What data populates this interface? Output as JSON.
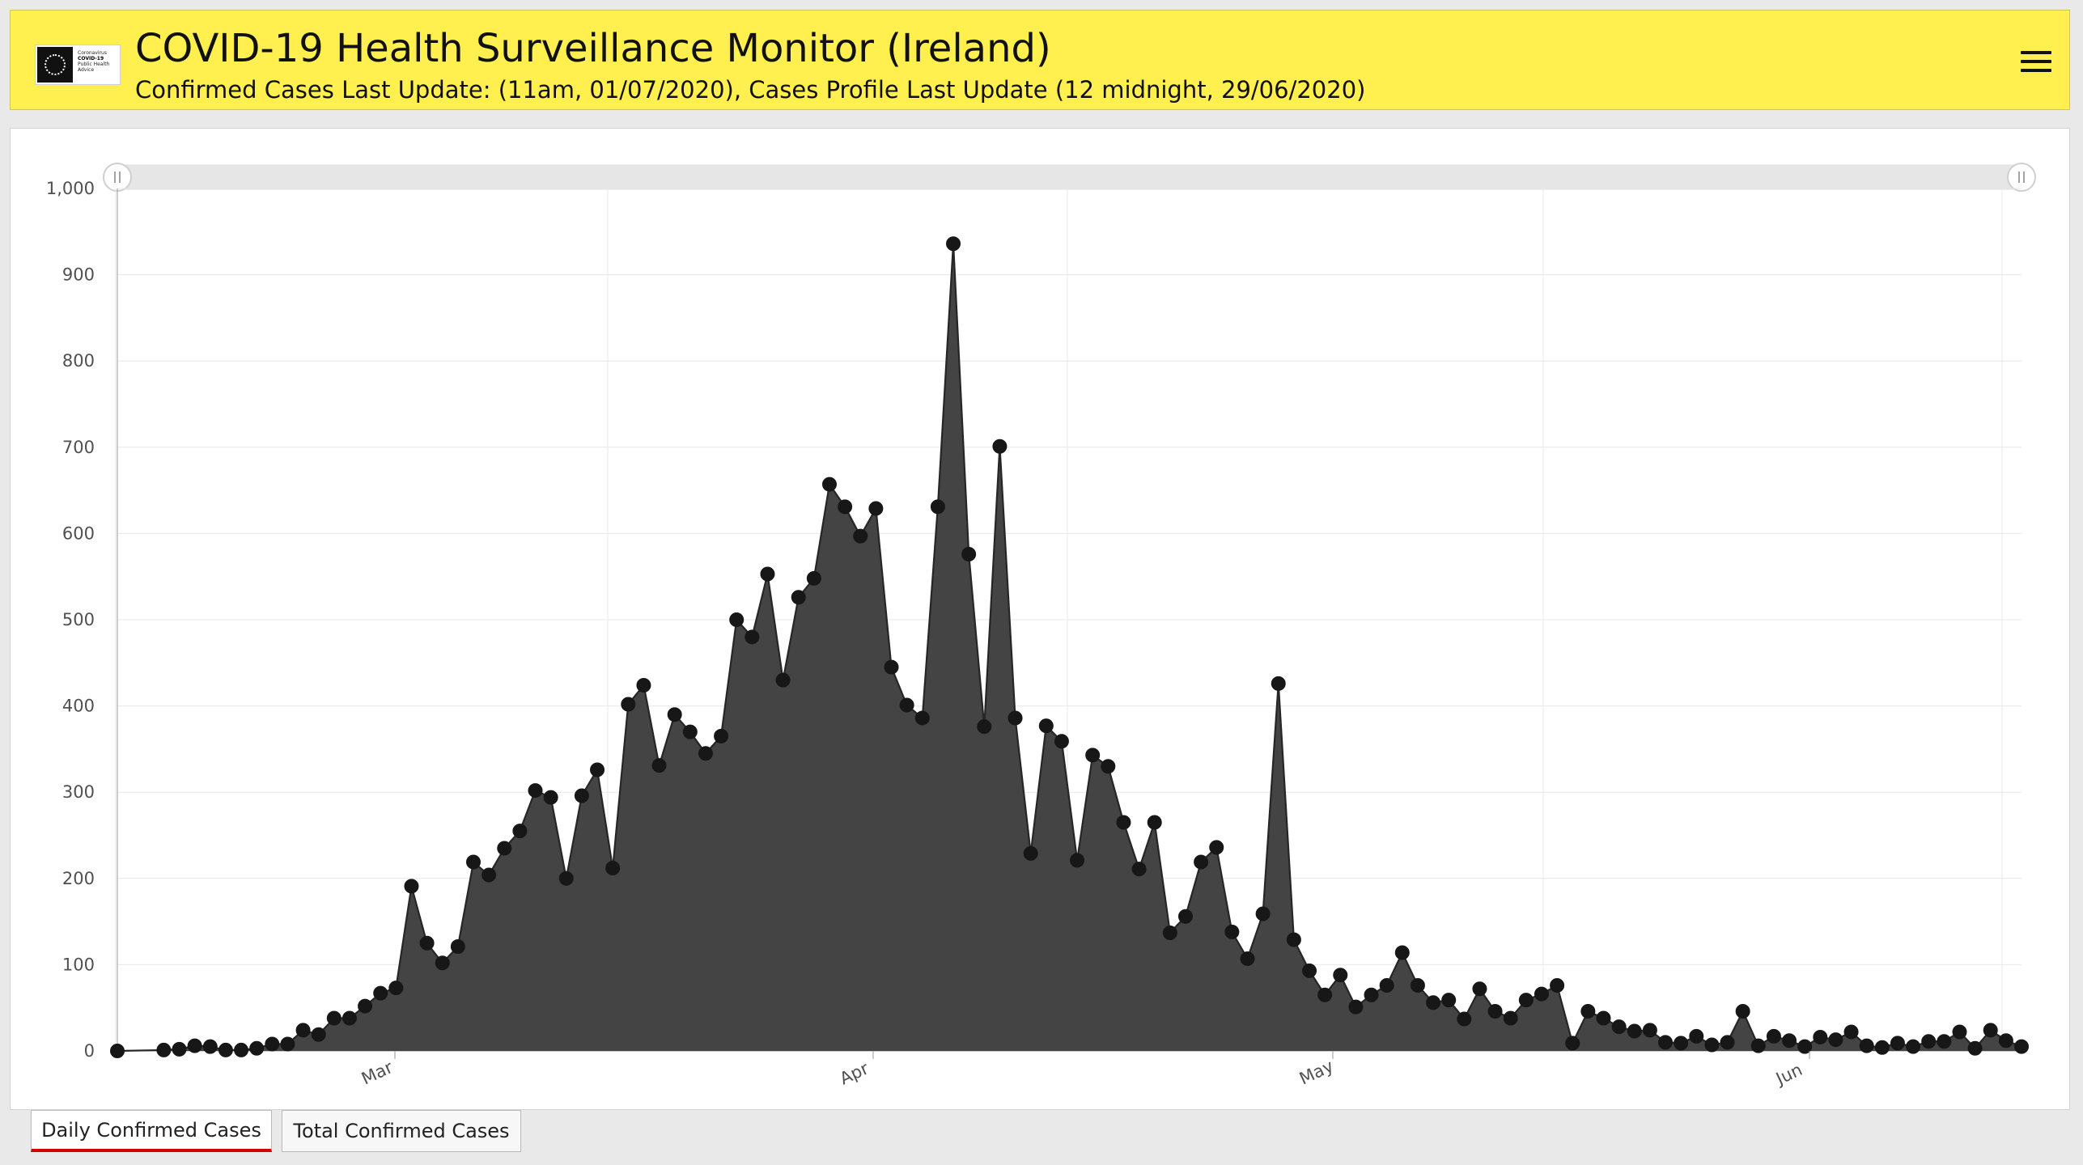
{
  "header": {
    "title": "COVID-19 Health Surveillance Monitor (Ireland)",
    "subtitle": "Confirmed Cases Last Update: (11am, 01/07/2020), Cases Profile Last Update (12 midnight, 29/06/2020)",
    "logo_text_1": "Coronavirus",
    "logo_text_2": "COVID-19",
    "logo_text_3": "Public Health",
    "logo_text_4": "Advice",
    "menu_icon": "hamburger-menu-icon",
    "background_color": "#ffef4f"
  },
  "tabs": [
    {
      "label": "Daily Confirmed Cases",
      "active": true
    },
    {
      "label": "Total Confirmed Cases",
      "active": false
    }
  ],
  "chart_data": {
    "type": "area",
    "title": "",
    "xlabel": "",
    "ylabel": "",
    "x_tick_labels": [
      "Mar",
      "Apr",
      "May",
      "Jun"
    ],
    "y_ticks": [
      0,
      100,
      200,
      300,
      400,
      500,
      600,
      700,
      800,
      900,
      1000
    ],
    "y_tick_labels": [
      "0",
      "100",
      "200",
      "300",
      "400",
      "500",
      "600",
      "700",
      "800",
      "900",
      "1,000"
    ],
    "ylim": [
      0,
      1000
    ],
    "grid": true,
    "scrollbar": true,
    "series": [
      {
        "color": "#434343",
        "values": [
          0,
          null,
          null,
          1,
          2,
          6,
          5,
          1,
          1,
          3,
          8,
          8,
          24,
          19,
          38,
          38,
          52,
          67,
          73,
          191,
          125,
          102,
          121,
          219,
          204,
          235,
          255,
          302,
          294,
          200,
          296,
          326,
          212,
          402,
          424,
          331,
          390,
          370,
          345,
          365,
          500,
          480,
          553,
          430,
          526,
          548,
          657,
          631,
          597,
          629,
          445,
          401,
          386,
          631,
          936,
          576,
          376,
          701,
          386,
          229,
          377,
          359,
          221,
          343,
          330,
          265,
          211,
          265,
          137,
          156,
          219,
          236,
          138,
          107,
          159,
          426,
          129,
          93,
          65,
          88,
          51,
          65,
          76,
          114,
          76,
          56,
          59,
          37,
          72,
          46,
          38,
          59,
          66,
          76,
          9,
          46,
          38,
          28,
          23,
          24,
          10,
          9,
          17,
          7,
          10,
          46,
          6,
          17,
          12,
          5,
          16,
          13,
          22,
          6,
          4,
          9,
          5,
          11,
          11,
          22,
          3,
          24,
          12,
          5
        ]
      }
    ]
  }
}
